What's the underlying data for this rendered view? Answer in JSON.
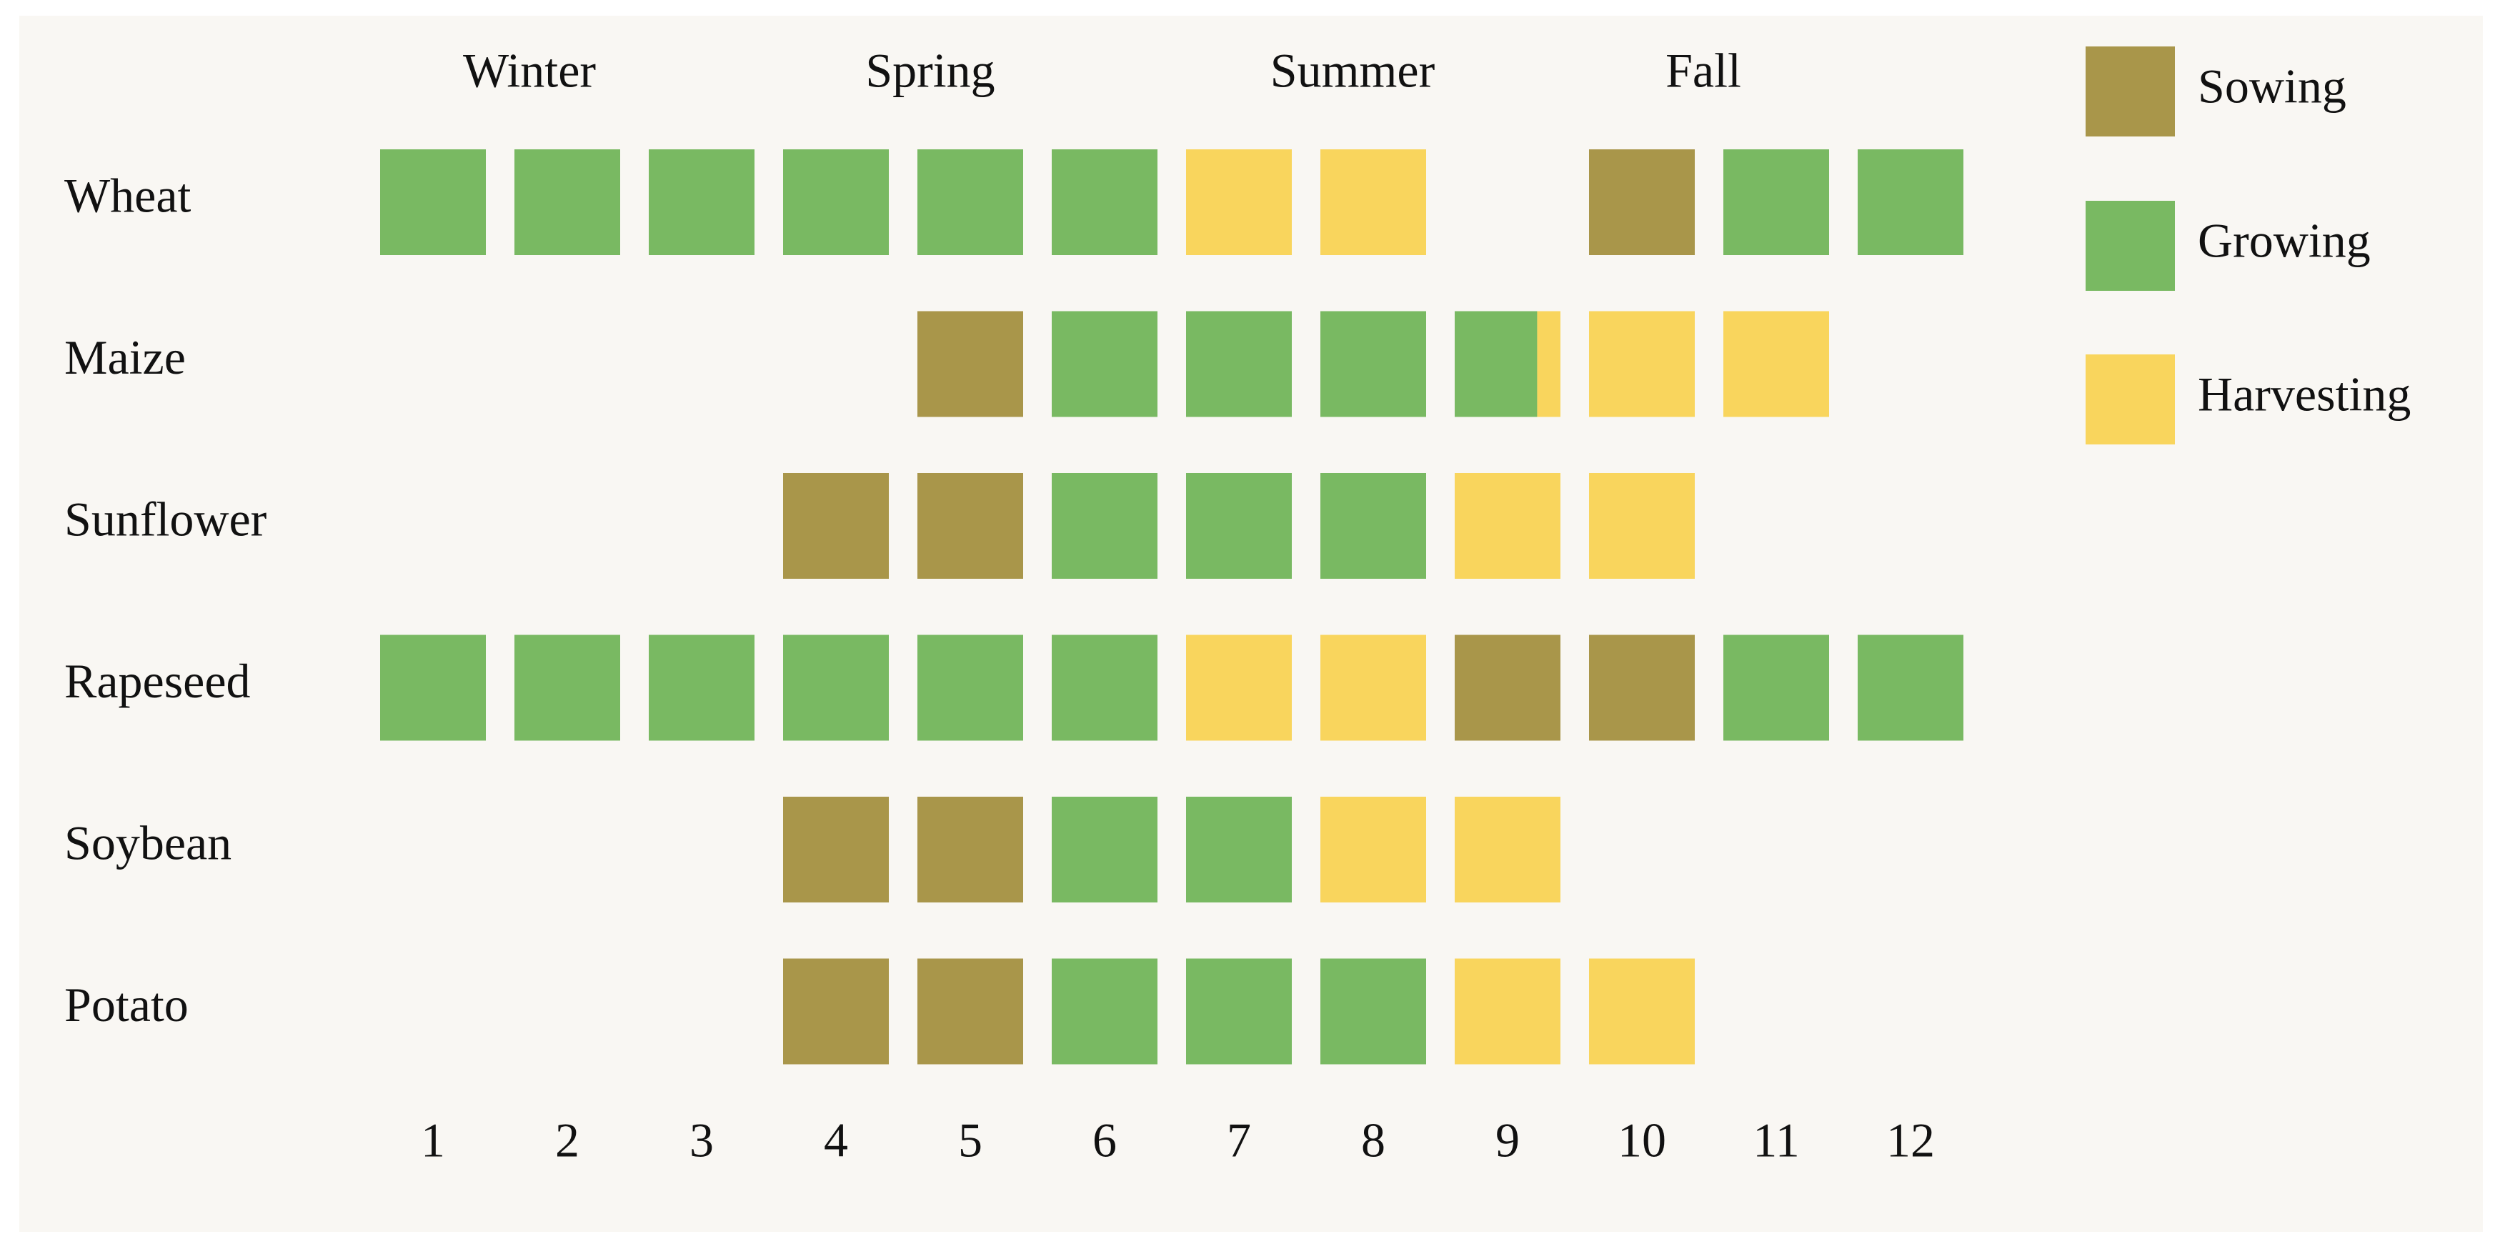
{
  "chart_data": {
    "type": "crop-calendar",
    "seasons": [
      "Winter",
      "Spring",
      "Summer",
      "Fall"
    ],
    "categories": [
      1,
      2,
      3,
      4,
      5,
      6,
      7,
      8,
      9,
      10,
      11,
      12
    ],
    "legend": [
      {
        "name": "Sowing",
        "color": "#a9964a"
      },
      {
        "name": "Growing",
        "color": "#79b962"
      },
      {
        "name": "Harvesting",
        "color": "#f9d55d"
      }
    ],
    "series": [
      {
        "name": "Wheat",
        "values": [
          "Growing",
          "Growing",
          "Growing",
          "Growing",
          "Growing",
          "Growing",
          "Harvesting",
          "Harvesting",
          null,
          "Sowing",
          "Growing",
          "Growing"
        ]
      },
      {
        "name": "Maize",
        "values": [
          null,
          null,
          null,
          null,
          "Sowing",
          "Growing",
          "Growing",
          "Growing",
          [
            {
              "stage": "Growing",
              "share": 0.78
            },
            {
              "stage": "Harvesting",
              "share": 0.22
            }
          ],
          "Harvesting",
          "Harvesting",
          null
        ]
      },
      {
        "name": "Sunflower",
        "values": [
          null,
          null,
          null,
          "Sowing",
          "Sowing",
          "Growing",
          "Growing",
          "Growing",
          "Harvesting",
          "Harvesting",
          null,
          null
        ]
      },
      {
        "name": "Rapeseed",
        "values": [
          "Growing",
          "Growing",
          "Growing",
          "Growing",
          "Growing",
          "Growing",
          "Harvesting",
          "Harvesting",
          "Sowing",
          "Sowing",
          "Growing",
          "Growing"
        ]
      },
      {
        "name": "Soybean",
        "values": [
          null,
          null,
          null,
          "Sowing",
          "Sowing",
          "Growing",
          "Growing",
          "Harvesting",
          "Harvesting",
          null,
          null,
          null
        ]
      },
      {
        "name": "Potato",
        "values": [
          null,
          null,
          null,
          "Sowing",
          "Sowing",
          "Growing",
          "Growing",
          "Growing",
          "Harvesting",
          "Harvesting",
          null,
          null
        ]
      }
    ]
  }
}
